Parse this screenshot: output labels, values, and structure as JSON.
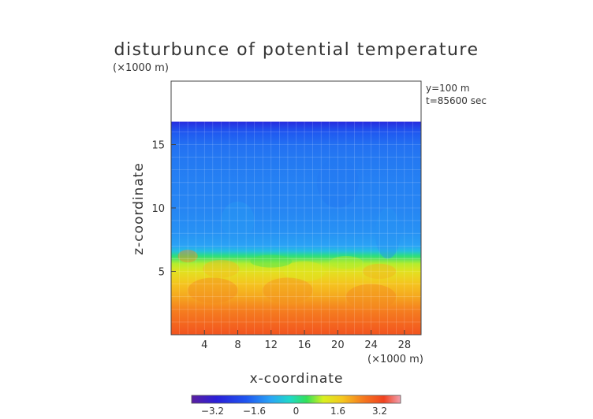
{
  "chart_data": {
    "type": "heatmap",
    "title": "disturbunce of potential temperature",
    "unit_label": "(×1000 m)",
    "annotations": [
      "y=100 m",
      "t=85600 sec"
    ],
    "xlabel": "x-coordinate",
    "xunit": "(×1000 m)",
    "ylabel": "z-coordinate",
    "xlim": [
      0,
      30
    ],
    "ylim": [
      0,
      20
    ],
    "x_ticks": [
      4,
      8,
      12,
      16,
      20,
      24,
      28
    ],
    "y_ticks": [
      5,
      10,
      15
    ],
    "colorbar": {
      "range": [
        -4,
        4
      ],
      "tick_values": [
        -3.2,
        -1.6,
        0,
        1.6,
        3.2
      ],
      "tick_labels": [
        "−3.2",
        "−1.6",
        "0",
        "1.6",
        "3.2"
      ]
    },
    "profile": {
      "z": [
        0,
        1,
        2,
        3,
        4,
        5,
        5.6,
        6.2,
        6.6,
        7,
        8,
        10,
        12,
        14,
        15,
        16,
        16.5,
        16.8
      ],
      "value": [
        3.1,
        2.8,
        2.5,
        2.1,
        1.8,
        1.3,
        0.9,
        0.2,
        -0.6,
        -1.0,
        -1.2,
        -1.35,
        -1.4,
        -1.5,
        -1.6,
        -1.9,
        -2.4,
        -2.8
      ]
    },
    "data_top_z": 16.8
  }
}
